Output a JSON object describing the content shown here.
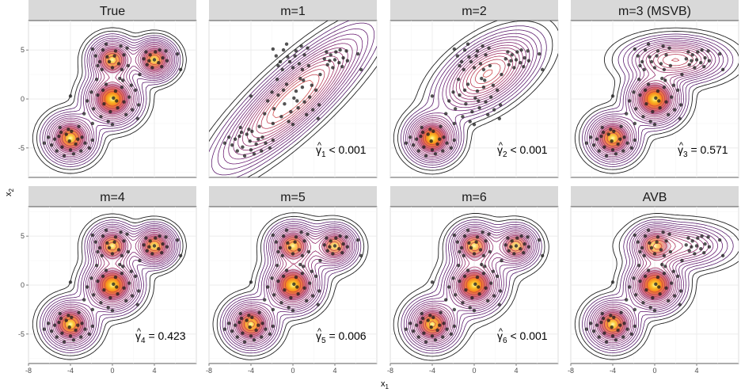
{
  "chart_data": {
    "type": "contour",
    "layout": {
      "rows": 2,
      "cols": 4
    },
    "xlabel": "x",
    "xlabel_sub": "1",
    "ylabel": "x",
    "ylabel_sub": "2",
    "xlim": [
      -8,
      8
    ],
    "ylim": [
      -8,
      8
    ],
    "x_ticks": [
      -8,
      -4,
      0,
      4
    ],
    "y_ticks": [
      -5,
      0,
      5
    ],
    "panels": [
      {
        "title": "True",
        "components": [
          {
            "mu": [
              -4,
              -4
            ],
            "sx": 1.2,
            "sy": 1.2,
            "r": 0,
            "w": 0.25
          },
          {
            "mu": [
              0,
              0
            ],
            "sx": 1.3,
            "sy": 1.3,
            "r": 0,
            "w": 0.35
          },
          {
            "mu": [
              0,
              4
            ],
            "sx": 1.1,
            "sy": 1.1,
            "r": 0,
            "w": 0.2
          },
          {
            "mu": [
              4,
              4
            ],
            "sx": 1.0,
            "sy": 1.0,
            "r": 0,
            "w": 0.2
          }
        ],
        "weight": null
      },
      {
        "title": "m=1",
        "components": [
          {
            "mu": [
              0,
              0
            ],
            "sx": 3.4,
            "sy": 3.4,
            "r": 0.85,
            "w": 1
          }
        ],
        "weight": {
          "sub": "1",
          "text": " < 0.001"
        }
      },
      {
        "title": "m=2",
        "components": [
          {
            "mu": [
              -4,
              -4
            ],
            "sx": 1.2,
            "sy": 1.2,
            "r": 0,
            "w": 0.3
          },
          {
            "mu": [
              1.3,
              2.6
            ],
            "sx": 2.3,
            "sy": 2.0,
            "r": 0.55,
            "w": 0.7
          }
        ],
        "weight": {
          "sub": "2",
          "text": " < 0.001"
        }
      },
      {
        "title": "m=3 (MSVB)",
        "components": [
          {
            "mu": [
              -4,
              -4
            ],
            "sx": 1.2,
            "sy": 1.2,
            "r": 0,
            "w": 0.25
          },
          {
            "mu": [
              0,
              0
            ],
            "sx": 1.3,
            "sy": 1.3,
            "r": 0,
            "w": 0.35
          },
          {
            "mu": [
              2,
              4
            ],
            "sx": 2.3,
            "sy": 1.1,
            "r": 0,
            "w": 0.4
          }
        ],
        "weight": {
          "sub": "3",
          "text": " = 0.571"
        }
      },
      {
        "title": "m=4",
        "components": [
          {
            "mu": [
              -4,
              -4
            ],
            "sx": 1.2,
            "sy": 1.2,
            "r": 0,
            "w": 0.25
          },
          {
            "mu": [
              0,
              0
            ],
            "sx": 1.3,
            "sy": 1.3,
            "r": 0,
            "w": 0.35
          },
          {
            "mu": [
              0,
              4
            ],
            "sx": 1.1,
            "sy": 1.1,
            "r": 0,
            "w": 0.2
          },
          {
            "mu": [
              4,
              4
            ],
            "sx": 1.0,
            "sy": 1.0,
            "r": 0,
            "w": 0.2
          }
        ],
        "weight": {
          "sub": "4",
          "text": " = 0.423"
        }
      },
      {
        "title": "m=5",
        "components": [
          {
            "mu": [
              -4,
              -4
            ],
            "sx": 1.2,
            "sy": 1.2,
            "r": 0,
            "w": 0.25
          },
          {
            "mu": [
              0,
              0
            ],
            "sx": 1.3,
            "sy": 1.3,
            "r": 0,
            "w": 0.33
          },
          {
            "mu": [
              0,
              4
            ],
            "sx": 1.1,
            "sy": 1.1,
            "r": 0,
            "w": 0.2
          },
          {
            "mu": [
              4,
              4
            ],
            "sx": 1.0,
            "sy": 1.0,
            "r": 0,
            "w": 0.15
          },
          {
            "mu": [
              2,
              3.5
            ],
            "sx": 2.0,
            "sy": 1.4,
            "r": 0,
            "w": 0.07
          }
        ],
        "weight": {
          "sub": "5",
          "text": " = 0.006"
        }
      },
      {
        "title": "m=6",
        "components": [
          {
            "mu": [
              -4,
              -4
            ],
            "sx": 1.2,
            "sy": 1.2,
            "r": 0,
            "w": 0.25
          },
          {
            "mu": [
              0,
              0
            ],
            "sx": 1.3,
            "sy": 1.3,
            "r": 0,
            "w": 0.33
          },
          {
            "mu": [
              0,
              4
            ],
            "sx": 1.1,
            "sy": 1.1,
            "r": 0,
            "w": 0.18
          },
          {
            "mu": [
              4,
              4
            ],
            "sx": 1.0,
            "sy": 1.0,
            "r": 0,
            "w": 0.14
          },
          {
            "mu": [
              2,
              3.5
            ],
            "sx": 2.0,
            "sy": 1.4,
            "r": 0,
            "w": 0.06
          },
          {
            "mu": [
              -1.5,
              -1.5
            ],
            "sx": 2.5,
            "sy": 2.5,
            "r": 0.5,
            "w": 0.04
          }
        ],
        "weight": {
          "sub": "6",
          "text": " < 0.001"
        }
      },
      {
        "title": "AVB",
        "components": [
          {
            "mu": [
              -4,
              -4
            ],
            "sx": 1.2,
            "sy": 1.2,
            "r": 0,
            "w": 0.25
          },
          {
            "mu": [
              0,
              0
            ],
            "sx": 1.3,
            "sy": 1.3,
            "r": 0,
            "w": 0.35
          },
          {
            "mu": [
              0,
              4
            ],
            "sx": 1.1,
            "sy": 1.1,
            "r": 0,
            "w": 0.15
          },
          {
            "mu": [
              2.5,
              4
            ],
            "sx": 2.3,
            "sy": 1.1,
            "r": 0,
            "w": 0.25
          }
        ],
        "weight": null
      }
    ],
    "points": [
      [
        -4.2,
        -3.1
      ],
      [
        -3.5,
        -4.6
      ],
      [
        -5.1,
        -3.8
      ],
      [
        -4.0,
        -5.2
      ],
      [
        -2.9,
        -3.9
      ],
      [
        -4.8,
        -4.9
      ],
      [
        -3.2,
        -2.8
      ],
      [
        -5.5,
        -4.1
      ],
      [
        -4.4,
        -3.6
      ],
      [
        -3.7,
        -5.6
      ],
      [
        -5.0,
        -2.9
      ],
      [
        -2.6,
        -4.5
      ],
      [
        -4.1,
        -4.3
      ],
      [
        -6.1,
        -3.9
      ],
      [
        -3.3,
        -4.1
      ],
      [
        -4.6,
        -5.8
      ],
      [
        -2.2,
        -5.0
      ],
      [
        -5.8,
        -4.7
      ],
      [
        -3.9,
        -3.3
      ],
      [
        -4.9,
        -3.4
      ],
      [
        -6.5,
        -4.5
      ],
      [
        -1.9,
        -4.2
      ],
      [
        -3.0,
        -5.3
      ],
      [
        -5.3,
        -5.3
      ],
      [
        0.3,
        0.8
      ],
      [
        -0.8,
        -0.5
      ],
      [
        1.1,
        -0.3
      ],
      [
        -0.2,
        -1.3
      ],
      [
        0.9,
        1.2
      ],
      [
        -1.4,
        0.4
      ],
      [
        0.5,
        -0.9
      ],
      [
        -0.6,
        1.5
      ],
      [
        1.6,
        0.2
      ],
      [
        -1.8,
        -1.0
      ],
      [
        0.1,
        0.1
      ],
      [
        1.3,
        -1.6
      ],
      [
        -1.1,
        -1.8
      ],
      [
        2.2,
        0.9
      ],
      [
        -2.0,
        0.7
      ],
      [
        0.7,
        2.1
      ],
      [
        -0.4,
        -2.3
      ],
      [
        1.9,
        -1.1
      ],
      [
        -2.4,
        -0.2
      ],
      [
        0.0,
        -2.6
      ],
      [
        2.5,
        -0.6
      ],
      [
        -1.5,
        2.0
      ],
      [
        1.0,
        1.9
      ],
      [
        -0.9,
        0.9
      ],
      [
        0.4,
        -0.2
      ],
      [
        -2.7,
        -1.5
      ],
      [
        -0.5,
        4.3
      ],
      [
        0.6,
        3.6
      ],
      [
        -1.2,
        3.8
      ],
      [
        0.3,
        4.9
      ],
      [
        1.1,
        4.5
      ],
      [
        -0.9,
        5.0
      ],
      [
        0.0,
        3.2
      ],
      [
        -1.6,
        4.4
      ],
      [
        0.8,
        5.4
      ],
      [
        -0.3,
        3.8
      ],
      [
        1.5,
        3.4
      ],
      [
        -1.0,
        3.0
      ],
      [
        0.2,
        4.4
      ],
      [
        -1.9,
        5.1
      ],
      [
        1.4,
        5.2
      ],
      [
        -0.6,
        5.6
      ],
      [
        0.9,
        3.0
      ],
      [
        -1.4,
        3.4
      ],
      [
        3.6,
        4.5
      ],
      [
        4.4,
        3.7
      ],
      [
        4.1,
        4.8
      ],
      [
        3.3,
        3.5
      ],
      [
        4.8,
        4.2
      ],
      [
        3.8,
        3.2
      ],
      [
        4.5,
        5.0
      ],
      [
        3.2,
        4.8
      ],
      [
        5.2,
        3.9
      ],
      [
        4.0,
        4.0
      ],
      [
        3.5,
        3.9
      ],
      [
        4.7,
        3.3
      ],
      [
        6.2,
        4.6
      ],
      [
        6.5,
        3.0
      ],
      [
        3.0,
        4.1
      ],
      [
        5.1,
        4.9
      ],
      [
        -4.0,
        0.3
      ],
      [
        -1.9,
        -2.5
      ],
      [
        2.6,
        2.5
      ],
      [
        1.8,
        1.4
      ],
      [
        2.4,
        -2.0
      ]
    ]
  }
}
